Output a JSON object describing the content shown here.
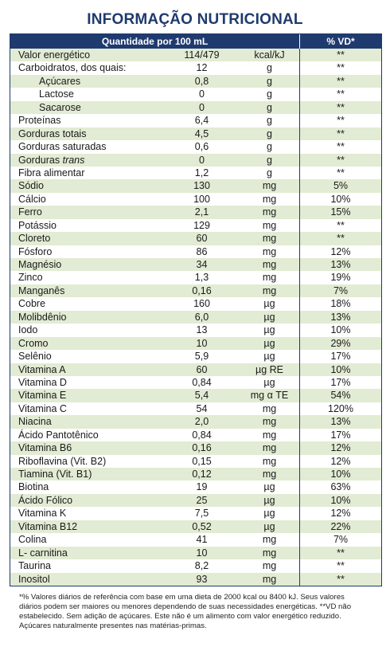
{
  "header": {
    "title": "INFORMAÇÃO NUTRICIONAL"
  },
  "table": {
    "columns": [
      "Quantidade por 100 mL",
      "% VD*"
    ],
    "rows": [
      {
        "name": "Valor energético",
        "amount": "114/479",
        "unit": "kcal/kJ",
        "vd": "**"
      },
      {
        "name": "Carboidratos, dos quais:",
        "amount": "12",
        "unit": "g",
        "vd": "**"
      },
      {
        "name": "Açúcares",
        "amount": "0,8",
        "unit": "g",
        "vd": "**",
        "indent": true
      },
      {
        "name": "Lactose",
        "amount": "0",
        "unit": "g",
        "vd": "**",
        "indent": true
      },
      {
        "name": "Sacarose",
        "amount": "0",
        "unit": "g",
        "vd": "**",
        "indent": true
      },
      {
        "name": "Proteínas",
        "amount": "6,4",
        "unit": "g",
        "vd": "**"
      },
      {
        "name": "Gorduras totais",
        "amount": "4,5",
        "unit": "g",
        "vd": "**"
      },
      {
        "name": "Gorduras saturadas",
        "amount": "0,6",
        "unit": "g",
        "vd": "**"
      },
      {
        "name": "Gorduras",
        "name_italic": "trans",
        "amount": "0",
        "unit": "g",
        "vd": "**"
      },
      {
        "name": "Fibra alimentar",
        "amount": "1,2",
        "unit": "g",
        "vd": "**"
      },
      {
        "name": "Sódio",
        "amount": "130",
        "unit": "mg",
        "vd": "5%"
      },
      {
        "name": "Cálcio",
        "amount": "100",
        "unit": "mg",
        "vd": "10%"
      },
      {
        "name": "Ferro",
        "amount": "2,1",
        "unit": "mg",
        "vd": "15%"
      },
      {
        "name": "Potássio",
        "amount": "129",
        "unit": "mg",
        "vd": "**"
      },
      {
        "name": "Cloreto",
        "amount": "60",
        "unit": "mg",
        "vd": "**"
      },
      {
        "name": "Fósforo",
        "amount": "86",
        "unit": "mg",
        "vd": "12%"
      },
      {
        "name": "Magnésio",
        "amount": "34",
        "unit": "mg",
        "vd": "13%"
      },
      {
        "name": "Zinco",
        "amount": "1,3",
        "unit": "mg",
        "vd": "19%"
      },
      {
        "name": "Manganês",
        "amount": "0,16",
        "unit": "mg",
        "vd": "7%"
      },
      {
        "name": "Cobre",
        "amount": "160",
        "unit": "µg",
        "vd": "18%"
      },
      {
        "name": "Molibdênio",
        "amount": "6,0",
        "unit": "µg",
        "vd": "13%"
      },
      {
        "name": "Iodo",
        "amount": "13",
        "unit": "µg",
        "vd": "10%"
      },
      {
        "name": "Cromo",
        "amount": "10",
        "unit": "µg",
        "vd": "29%"
      },
      {
        "name": "Selênio",
        "amount": "5,9",
        "unit": "µg",
        "vd": "17%"
      },
      {
        "name": "Vitamina A",
        "amount": "60",
        "unit": "µg RE",
        "vd": "10%"
      },
      {
        "name": "Vitamina D",
        "amount": "0,84",
        "unit": "µg",
        "vd": "17%"
      },
      {
        "name": "Vitamina E",
        "amount": "5,4",
        "unit": "mg α TE",
        "vd": "54%"
      },
      {
        "name": "Vitamina C",
        "amount": "54",
        "unit": "mg",
        "vd": "120%"
      },
      {
        "name": "Niacina",
        "amount": "2,0",
        "unit": "mg",
        "vd": "13%"
      },
      {
        "name": "Ácido Pantotênico",
        "amount": "0,84",
        "unit": "mg",
        "vd": "17%"
      },
      {
        "name": "Vitamina B6",
        "amount": "0,16",
        "unit": "mg",
        "vd": "12%"
      },
      {
        "name": "Riboflavina (Vit. B2)",
        "amount": "0,15",
        "unit": "mg",
        "vd": "12%"
      },
      {
        "name": "Tiamina (Vit. B1)",
        "amount": "0,12",
        "unit": "mg",
        "vd": "10%"
      },
      {
        "name": "Biotina",
        "amount": "19",
        "unit": "µg",
        "vd": "63%"
      },
      {
        "name": "Ácido Fólico",
        "amount": "25",
        "unit": "µg",
        "vd": "10%"
      },
      {
        "name": "Vitamina K",
        "amount": "7,5",
        "unit": "µg",
        "vd": "12%"
      },
      {
        "name": "Vitamina B12",
        "amount": "0,52",
        "unit": "µg",
        "vd": "22%"
      },
      {
        "name": "Colina",
        "amount": "41",
        "unit": "mg",
        "vd": "7%"
      },
      {
        "name": "L- carnitina",
        "amount": "10",
        "unit": "mg",
        "vd": "**"
      },
      {
        "name": "Taurina",
        "amount": "8,2",
        "unit": "mg",
        "vd": "**"
      },
      {
        "name": "Inositol",
        "amount": "93",
        "unit": "mg",
        "vd": "**"
      }
    ]
  },
  "footnote": [
    "*% Valores diários de referência com base em uma dieta de 2000 kcal ou 8400 kJ. Seus valores",
    "diários podem ser maiores ou menores dependendo de suas necessidades energéticas. **VD não",
    "estabelecido. Sem adição de açúcares. Este não é um alimento com valor energético reduzido.",
    "Açúcares naturalmente presentes nas matérias-primas."
  ]
}
